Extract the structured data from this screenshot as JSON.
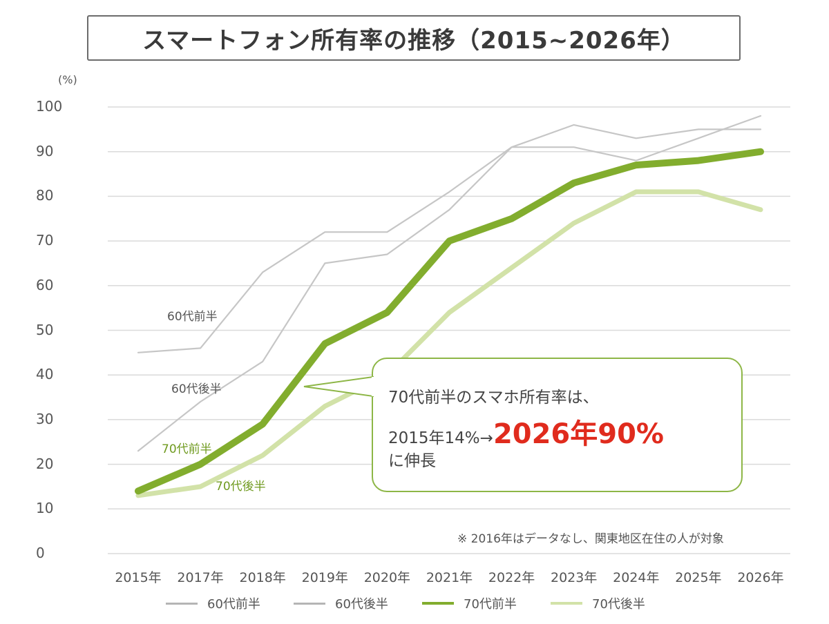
{
  "title": "スマートフォン所有率の推移（2015~2026年）",
  "y_unit": "(%)",
  "note": "※ 2016年はデータなし、関東地区在住の人が対象",
  "callout": {
    "line1": "70代前半のスマホ所有率は、",
    "line2_prefix": "2015年14%→",
    "line2_highlight": "2026年90%",
    "line3": "に伸長"
  },
  "series_labels": {
    "s60early": "60代前半",
    "s60late": "60代後半",
    "s70early": "70代前半",
    "s70late": "70代後半"
  },
  "legend": [
    "60代前半",
    "60代後半",
    "70代前半",
    "70代後半"
  ],
  "colors": {
    "s60early": "#c6c6c6",
    "s60late": "#c6c6c6",
    "s70early": "#82ad2e",
    "s70late": "#d2e2a8",
    "grid": "#dadada",
    "callout_border": "#8db646",
    "highlight": "#e02b1d"
  },
  "chart_data": {
    "type": "line",
    "title": "スマートフォン所有率の推移（2015~2026年）",
    "ylabel": "(%)",
    "ylim": [
      0,
      100
    ],
    "yticks": [
      "100",
      "90",
      "80",
      "70",
      "60",
      "50",
      "40",
      "30",
      "20",
      "10",
      "0"
    ],
    "categories": [
      "2015年",
      "2017年",
      "2018年",
      "2019年",
      "2020年",
      "2021年",
      "2022年",
      "2023年",
      "2024年",
      "2025年",
      "2026年"
    ],
    "series": [
      {
        "name": "60代前半",
        "values": [
          45,
          46,
          63,
          72,
          72,
          81,
          91,
          96,
          93,
          95,
          95
        ]
      },
      {
        "name": "60代後半",
        "values": [
          23,
          34,
          43,
          65,
          67,
          77,
          91,
          91,
          88,
          93,
          98
        ]
      },
      {
        "name": "70代前半",
        "values": [
          14,
          20,
          29,
          47,
          54,
          70,
          75,
          83,
          87,
          88,
          90
        ]
      },
      {
        "name": "70代後半",
        "values": [
          13,
          15,
          22,
          33,
          40,
          54,
          64,
          74,
          81,
          81,
          77
        ]
      }
    ],
    "grid": true,
    "legend_position": "bottom"
  }
}
